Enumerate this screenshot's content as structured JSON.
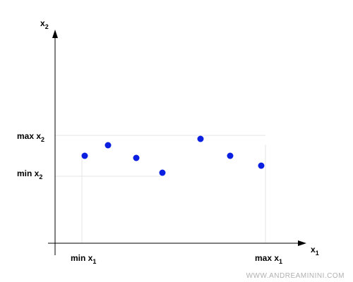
{
  "axes": {
    "x": {
      "main": "x",
      "sub": "1"
    },
    "y": {
      "main": "x",
      "sub": "2"
    }
  },
  "labels": {
    "min_x1": {
      "main": "min x",
      "sub": "1"
    },
    "max_x1": {
      "main": "max x",
      "sub": "1"
    },
    "min_x2": {
      "main": "min x",
      "sub": "2"
    },
    "max_x2": {
      "main": "max x",
      "sub": "2"
    }
  },
  "watermark": "WWW.ANDREAMININI.COM"
}
